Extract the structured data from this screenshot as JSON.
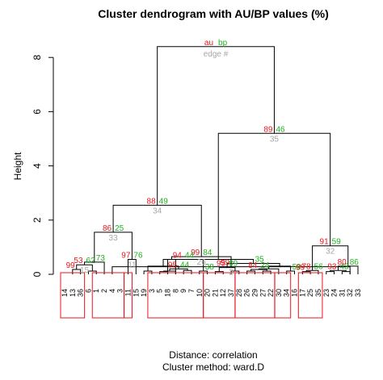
{
  "chart_data": {
    "type": "dendrogram",
    "title": "Cluster dendrogram with AU/BP values (%)",
    "ylabel": "Height",
    "ylim": [
      0,
      9
    ],
    "yticks": [
      0,
      2,
      4,
      6,
      8
    ],
    "xlabel_lines": [
      "Distance:  correlation",
      "Cluster method: ward.D"
    ],
    "legend": {
      "au": "au",
      "bp": "bp",
      "edge": "edge #"
    },
    "colors": {
      "au": "#e8141c",
      "bp": "#1fb31f",
      "edge": "#a6a6a6",
      "box": "#e8141c",
      "axis": "#000000"
    },
    "leaves": [
      "14",
      "13",
      "36",
      "6",
      "1",
      "2",
      "4",
      "3",
      "11",
      "15",
      "19",
      "3",
      "5",
      "18",
      "8",
      "9",
      "7",
      "10",
      "20",
      "21",
      "12",
      "37",
      "28",
      "26",
      "29",
      "27",
      "22",
      "30",
      "34",
      "16",
      "17",
      "25",
      "35",
      "23",
      "24",
      "31",
      "32",
      "33"
    ],
    "merges": [
      {
        "l": 14,
        "r": 13,
        "h": 0.55,
        "au": null,
        "bp": null,
        "edge": null
      },
      {
        "l": 36,
        "r": 6,
        "h": 0.28,
        "au": "99",
        "bp": null,
        "edge": "2"
      },
      {
        "l": 38,
        "r": 39,
        "h": 0.65,
        "au": "99",
        "bp": "84",
        "edge": "26"
      },
      {
        "l": 1,
        "r": 2,
        "h": 0.18,
        "au": "99",
        "bp": null,
        "edge": null
      },
      {
        "l": 3,
        "r": 4,
        "h": 0.12,
        "au": null,
        "bp": null,
        "edge": null
      },
      {
        "l": 41,
        "r": 42,
        "h": 0.35,
        "au": "53",
        "bp": "62",
        "edge": "15"
      },
      {
        "l": 5,
        "r": 43,
        "h": 0.45,
        "au": null,
        "bp": "73",
        "edge": null
      },
      {
        "l": 8,
        "r": 9,
        "h": 0.55,
        "au": "97",
        "bp": "76",
        "edge": "11"
      },
      {
        "l": 44,
        "r": 45,
        "h": 1.55,
        "au": "86",
        "bp": "25",
        "edge": "33"
      },
      {
        "l": 40,
        "r": 46,
        "h": 2.55,
        "au": "88",
        "bp": "49",
        "edge": "34"
      },
      {
        "l": 10,
        "r": 11,
        "h": 0.12,
        "au": null,
        "bp": null,
        "edge": null
      },
      {
        "l": 12,
        "r": 13,
        "h": 0.1,
        "au": null,
        "bp": null,
        "edge": null
      },
      {
        "l": 49,
        "r": 14,
        "h": 0.12,
        "au": null,
        "bp": null,
        "edge": null
      },
      {
        "l": 15,
        "r": 16,
        "h": 0.14,
        "au": null,
        "bp": null,
        "edge": null
      },
      {
        "l": 50,
        "r": 51,
        "h": 0.2,
        "au": "95",
        "bp": "44",
        "edge": null
      },
      {
        "l": 48,
        "r": 52,
        "h": 0.3,
        "au": null,
        "bp": null,
        "edge": null
      },
      {
        "l": 17,
        "r": 18,
        "h": 0.12,
        "au": null,
        "bp": "38",
        "edge": null
      },
      {
        "l": 53,
        "r": 54,
        "h": 0.55,
        "au": "94",
        "bp": "44",
        "edge": null
      },
      {
        "l": 19,
        "r": 20,
        "h": 0.1,
        "au": null,
        "bp": null,
        "edge": null
      },
      {
        "l": 21,
        "r": 22,
        "h": 0.12,
        "au": null,
        "bp": null,
        "edge": null
      },
      {
        "l": 56,
        "r": 57,
        "h": 0.25,
        "au": "95",
        "bp": "89",
        "edge": null
      },
      {
        "l": 23,
        "r": 24,
        "h": 0.12,
        "au": null,
        "bp": null,
        "edge": null
      },
      {
        "l": 25,
        "r": 26,
        "h": 0.12,
        "au": null,
        "bp": null,
        "edge": null
      },
      {
        "l": 59,
        "r": 60,
        "h": 0.18,
        "au": "84",
        "bp": "24",
        "edge": null
      },
      {
        "l": 61,
        "r": 27,
        "h": 0.2,
        "au": null,
        "bp": null,
        "edge": null
      },
      {
        "l": 28,
        "r": 29,
        "h": 0.12,
        "au": null,
        "bp": "59",
        "edge": null
      },
      {
        "l": 62,
        "r": 63,
        "h": 0.3,
        "au": null,
        "bp": null,
        "edge": null
      },
      {
        "l": 58,
        "r": 64,
        "h": 0.4,
        "au": null,
        "bp": "35",
        "edge": null
      },
      {
        "l": 55,
        "r": 65,
        "h": 0.55,
        "au": null,
        "bp": null,
        "edge": null
      },
      {
        "l": 30,
        "r": 31,
        "h": 0.1,
        "au": "99",
        "bp": null,
        "edge": null
      },
      {
        "l": 67,
        "r": 32,
        "h": 0.14,
        "au": "78",
        "bp": "56",
        "edge": null
      },
      {
        "l": 33,
        "r": 34,
        "h": 0.1,
        "au": null,
        "bp": null,
        "edge": null
      },
      {
        "l": 35,
        "r": 36,
        "h": 0.1,
        "au": null,
        "bp": null,
        "edge": null
      },
      {
        "l": 69,
        "r": 70,
        "h": 0.14,
        "au": "93",
        "bp": "43",
        "edge": null
      },
      {
        "l": 71,
        "r": 37,
        "h": 0.3,
        "au": "80",
        "bp": "86",
        "edge": null
      },
      {
        "l": 68,
        "r": 72,
        "h": 1.05,
        "au": "91",
        "bp": "59",
        "edge": "32"
      },
      {
        "l": 66,
        "r": 73,
        "h": 5.2,
        "au": "89",
        "bp": "46",
        "edge": "35"
      },
      {
        "l": 47,
        "r": 74,
        "h": 8.4,
        "au": "",
        "bp": "",
        "edge": ""
      }
    ],
    "clusters": [
      [
        0,
        2
      ],
      [
        4,
        7
      ],
      [
        8,
        8
      ],
      [
        11,
        17
      ],
      [
        18,
        21
      ],
      [
        22,
        26
      ],
      [
        27,
        28
      ],
      [
        30,
        32
      ]
    ]
  }
}
